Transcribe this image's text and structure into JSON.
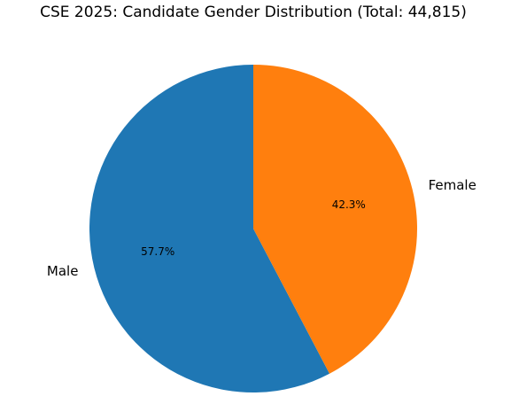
{
  "chart_data": {
    "type": "pie",
    "title": "CSE 2025: Candidate Gender Distribution (Total: 44,815)",
    "categories": [
      "Male",
      "Female"
    ],
    "values": [
      57.7,
      42.3
    ],
    "value_labels": [
      "57.7%",
      "42.3%"
    ],
    "colors": [
      "#1f77b4",
      "#ff7f0e"
    ]
  }
}
